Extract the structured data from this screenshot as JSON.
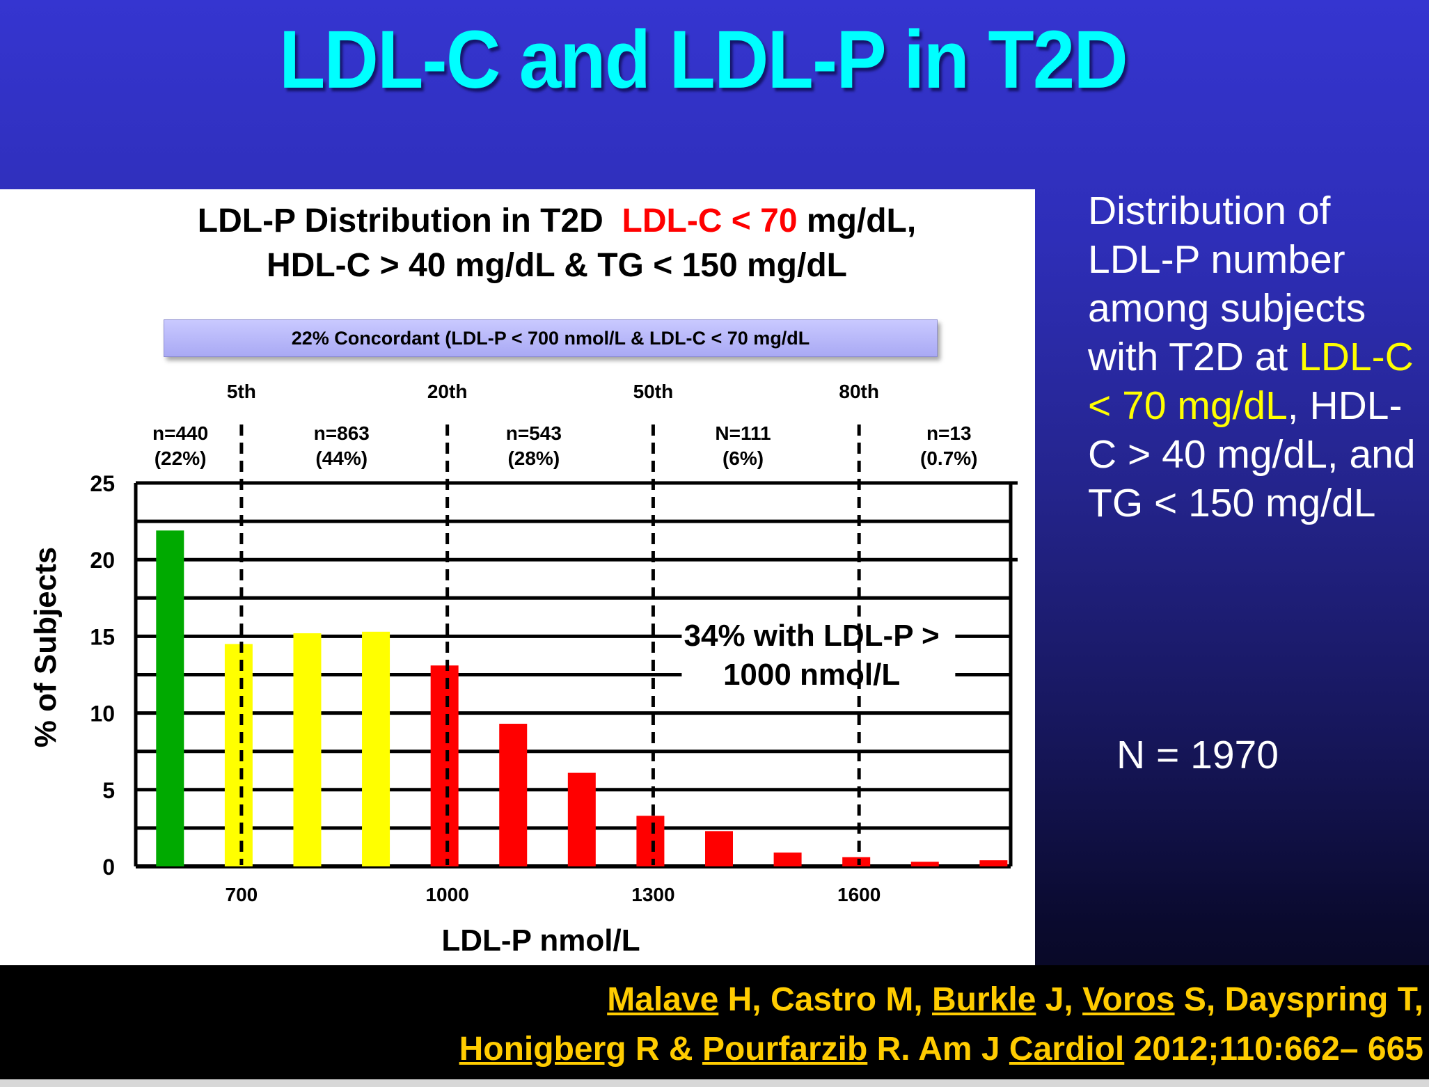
{
  "slide": {
    "title": "LDL-C and LDL-P in T2D",
    "side_text": {
      "part1": "Distribution of LDL-P number among subjects with T2D at ",
      "highlight": "LDL-C < 70 mg/dL",
      "part2": ", HDL-C > 40 mg/dL, and TG < 150 mg/dL"
    },
    "n_total": "N = 1970",
    "colors": {
      "background": "#2e2eb8",
      "title": "#00ffff",
      "highlight": "#ffff00",
      "citation": "#ffcc00"
    },
    "citation": {
      "line1": {
        "authors": [
          {
            "underlined": "Malave",
            "rest": " H, "
          },
          {
            "underlined": "",
            "rest": "Castro M, "
          },
          {
            "underlined": "Burkle",
            "rest": " J, "
          },
          {
            "underlined": "Voros",
            "rest": " S, "
          },
          {
            "underlined": "",
            "rest": "Dayspring T,"
          }
        ]
      },
      "line2": {
        "authors": [
          {
            "underlined": "Honigberg",
            "rest": " R & "
          },
          {
            "underlined": "Pourfarzib",
            "rest": " R. Am J "
          },
          {
            "underlined": "Cardiol",
            "rest": " 2012;110:662– 665"
          }
        ]
      }
    }
  },
  "chart_data": {
    "type": "bar",
    "title_parts": {
      "prefix": "LDL-P Distribution in T2D  ",
      "red": "LDL-C < 70",
      "suffix": " mg/dL,",
      "line2": "HDL-C > 40 mg/dL & TG < 150 mg/dL"
    },
    "concordant_label": "22% Concordant (LDL-P < 700 nmol/L & LDL-C < 70 mg/dL",
    "xlabel": "LDL-P nmol/L",
    "ylabel": "% of Subjects",
    "ylim": [
      0,
      25
    ],
    "yticks": [
      0,
      5,
      10,
      15,
      20,
      25
    ],
    "xlim": [
      550,
      1825
    ],
    "xticks": [
      700,
      1000,
      1300,
      1600
    ],
    "bars": [
      {
        "x": 600,
        "value": 21.9,
        "color": "#00aa00"
      },
      {
        "x": 700,
        "value": 14.5,
        "color": "#ffff00"
      },
      {
        "x": 800,
        "value": 15.2,
        "color": "#ffff00"
      },
      {
        "x": 900,
        "value": 15.3,
        "color": "#ffff00"
      },
      {
        "x": 1000,
        "value": 13.1,
        "color": "#ff0000"
      },
      {
        "x": 1100,
        "value": 9.3,
        "color": "#ff0000"
      },
      {
        "x": 1200,
        "value": 6.1,
        "color": "#ff0000"
      },
      {
        "x": 1300,
        "value": 3.3,
        "color": "#ff0000"
      },
      {
        "x": 1400,
        "value": 2.3,
        "color": "#ff0000"
      },
      {
        "x": 1500,
        "value": 0.9,
        "color": "#ff0000"
      },
      {
        "x": 1600,
        "value": 0.6,
        "color": "#ff0000"
      },
      {
        "x": 1700,
        "value": 0.3,
        "color": "#ff0000"
      },
      {
        "x": 1800,
        "value": 0.4,
        "color": "#ff0000"
      }
    ],
    "gridlines": [
      2.5,
      7.5,
      12.5,
      17.5,
      22.5
    ],
    "percentiles": [
      {
        "label": "5th",
        "x": 700
      },
      {
        "label": "20th",
        "x": 1000
      },
      {
        "label": "50th",
        "x": 1300
      },
      {
        "label": "80th",
        "x": 1600
      }
    ],
    "group_counts": [
      {
        "n": "n=440",
        "pct": "(22%)",
        "x": 615
      },
      {
        "n": "n=863",
        "pct": "(44%)",
        "x": 850
      },
      {
        "n": "n=543",
        "pct": "(28%)",
        "x": 1130
      },
      {
        "n": "N=111",
        "pct": "(6%)",
        "x": 1435
      },
      {
        "n": "n=13",
        "pct": "(0.7%)",
        "x": 1735
      }
    ],
    "annotation": {
      "line1": "34% with LDL-P >",
      "line2": "1000 nmol/L"
    },
    "colors": {
      "low": "#00aa00",
      "borderline": "#ffff00",
      "high": "#ff0000"
    }
  }
}
